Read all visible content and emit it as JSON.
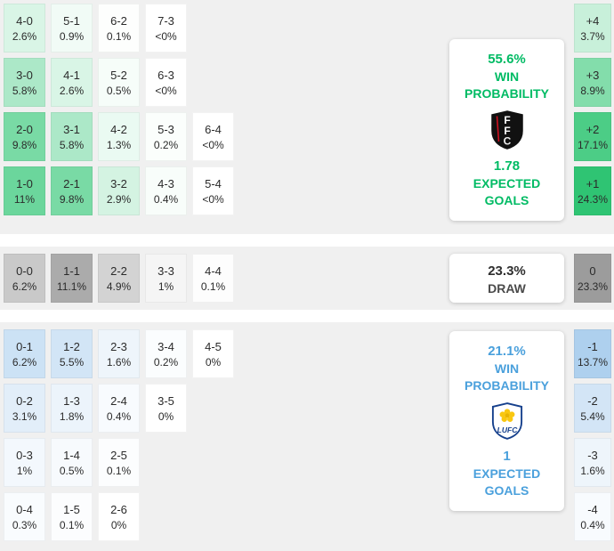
{
  "colors": {
    "home_accent": "#00bb64",
    "away_accent": "#4aa0dc",
    "draw_accent": "#2f2f2f",
    "section_bg": "#f0f0f0",
    "home_max_cell": "#2fc473",
    "away_max_cell": "#aed0ee",
    "draw_max_cell": "#9c9c9c"
  },
  "home": {
    "card": {
      "probability": "55.6%",
      "label_line1": "WIN",
      "label_line2": "PROBABILITY",
      "expected_goals": "1.78",
      "eg_line1": "EXPECTED",
      "eg_line2": "GOALS",
      "team_icon": "fulham-crest"
    },
    "rows": [
      [
        {
          "score": "4-0",
          "pct": "2.6%",
          "bg": "#d9f5e6"
        },
        {
          "score": "5-1",
          "pct": "0.9%",
          "bg": "#f1fbf6"
        },
        {
          "score": "6-2",
          "pct": "0.1%",
          "bg": "#fdfefd"
        },
        {
          "score": "7-3",
          "pct": "<0%",
          "bg": "#ffffff"
        }
      ],
      [
        {
          "score": "3-0",
          "pct": "5.8%",
          "bg": "#ace8c8"
        },
        {
          "score": "4-1",
          "pct": "2.6%",
          "bg": "#d9f5e6"
        },
        {
          "score": "5-2",
          "pct": "0.5%",
          "bg": "#f6fdf9"
        },
        {
          "score": "6-3",
          "pct": "<0%",
          "bg": "#ffffff"
        }
      ],
      [
        {
          "score": "2-0",
          "pct": "9.8%",
          "bg": "#79daa5"
        },
        {
          "score": "3-1",
          "pct": "5.8%",
          "bg": "#ace8c8"
        },
        {
          "score": "4-2",
          "pct": "1.3%",
          "bg": "#eafaf2"
        },
        {
          "score": "5-3",
          "pct": "0.2%",
          "bg": "#fbfefc"
        },
        {
          "score": "6-4",
          "pct": "<0%",
          "bg": "#ffffff"
        }
      ],
      [
        {
          "score": "1-0",
          "pct": "11%",
          "bg": "#6bd69c"
        },
        {
          "score": "2-1",
          "pct": "9.8%",
          "bg": "#79daa5"
        },
        {
          "score": "3-2",
          "pct": "2.9%",
          "bg": "#d4f3e2"
        },
        {
          "score": "4-3",
          "pct": "0.4%",
          "bg": "#f8fdfa"
        },
        {
          "score": "5-4",
          "pct": "<0%",
          "bg": "#ffffff"
        }
      ]
    ],
    "margin_cells": [
      {
        "score": "+4",
        "pct": "3.7%",
        "bg": "#c8f0da"
      },
      {
        "score": "+3",
        "pct": "8.9%",
        "bg": "#83ddab"
      },
      {
        "score": "+2",
        "pct": "17.1%",
        "bg": "#4ccd86"
      },
      {
        "score": "+1",
        "pct": "24.3%",
        "bg": "#2fc473"
      }
    ]
  },
  "draw": {
    "card": {
      "probability": "23.3%",
      "label": "DRAW"
    },
    "rows": [
      [
        {
          "score": "0-0",
          "pct": "6.2%",
          "bg": "#c9c9c9"
        },
        {
          "score": "1-1",
          "pct": "11.1%",
          "bg": "#ababab"
        },
        {
          "score": "2-2",
          "pct": "4.9%",
          "bg": "#d3d3d3"
        },
        {
          "score": "3-3",
          "pct": "1%",
          "bg": "#f5f5f5"
        },
        {
          "score": "4-4",
          "pct": "0.1%",
          "bg": "#fdfdfd"
        }
      ]
    ],
    "margin_cells": [
      {
        "score": "0",
        "pct": "23.3%",
        "bg": "#9c9c9c"
      }
    ]
  },
  "away": {
    "card": {
      "probability": "21.1%",
      "label_line1": "WIN",
      "label_line2": "PROBABILITY",
      "expected_goals": "1",
      "eg_line1": "EXPECTED",
      "eg_line2": "GOALS",
      "team_icon": "leeds-crest"
    },
    "rows": [
      [
        {
          "score": "0-1",
          "pct": "6.2%",
          "bg": "#cce2f5"
        },
        {
          "score": "1-2",
          "pct": "5.5%",
          "bg": "#d2e5f6"
        },
        {
          "score": "2-3",
          "pct": "1.6%",
          "bg": "#eef5fb"
        },
        {
          "score": "3-4",
          "pct": "0.2%",
          "bg": "#fbfdfe"
        },
        {
          "score": "4-5",
          "pct": "0%",
          "bg": "#ffffff"
        }
      ],
      [
        {
          "score": "0-2",
          "pct": "3.1%",
          "bg": "#e2eef9"
        },
        {
          "score": "1-3",
          "pct": "1.8%",
          "bg": "#ecf4fb"
        },
        {
          "score": "2-4",
          "pct": "0.4%",
          "bg": "#f8fbfe"
        },
        {
          "score": "3-5",
          "pct": "0%",
          "bg": "#ffffff"
        }
      ],
      [
        {
          "score": "0-3",
          "pct": "1%",
          "bg": "#f3f8fd"
        },
        {
          "score": "1-4",
          "pct": "0.5%",
          "bg": "#f7fafd"
        },
        {
          "score": "2-5",
          "pct": "0.1%",
          "bg": "#fcfdfe"
        }
      ],
      [
        {
          "score": "0-4",
          "pct": "0.3%",
          "bg": "#f9fcfe"
        },
        {
          "score": "1-5",
          "pct": "0.1%",
          "bg": "#fcfdfe"
        },
        {
          "score": "2-6",
          "pct": "0%",
          "bg": "#ffffff"
        }
      ]
    ],
    "margin_cells": [
      {
        "score": "-1",
        "pct": "13.7%",
        "bg": "#aed0ee"
      },
      {
        "score": "-2",
        "pct": "5.4%",
        "bg": "#d3e5f6"
      },
      {
        "score": "-3",
        "pct": "1.6%",
        "bg": "#eef5fb"
      },
      {
        "score": "-4",
        "pct": "0.4%",
        "bg": "#f8fbfe"
      }
    ]
  },
  "chart_data": {
    "type": "heatmap",
    "title": "Correct-score probability matrix with win/draw probabilities and expected goals",
    "legend_position": "right-cards",
    "groups": [
      {
        "outcome": "home-win",
        "color": "green",
        "team_icon": "fulham-crest",
        "win_probability": "55.6%",
        "expected_goals": "1.78",
        "scores": {
          "4-0": "2.6%",
          "5-1": "0.9%",
          "6-2": "0.1%",
          "7-3": "<0%",
          "3-0": "5.8%",
          "4-1": "2.6%",
          "5-2": "0.5%",
          "6-3": "<0%",
          "2-0": "9.8%",
          "3-1": "5.8%",
          "4-2": "1.3%",
          "5-3": "0.2%",
          "6-4": "<0%",
          "1-0": "11%",
          "2-1": "9.8%",
          "3-2": "2.9%",
          "4-3": "0.4%",
          "5-4": "<0%"
        },
        "goal_difference": {
          "+4": "3.7%",
          "+3": "8.9%",
          "+2": "17.1%",
          "+1": "24.3%"
        }
      },
      {
        "outcome": "draw",
        "color": "gray",
        "probability": "23.3%",
        "scores": {
          "0-0": "6.2%",
          "1-1": "11.1%",
          "2-2": "4.9%",
          "3-3": "1%",
          "4-4": "0.1%"
        },
        "goal_difference": {
          "0": "23.3%"
        }
      },
      {
        "outcome": "away-win",
        "color": "blue",
        "team_icon": "leeds-crest",
        "win_probability": "21.1%",
        "expected_goals": "1",
        "scores": {
          "0-1": "6.2%",
          "1-2": "5.5%",
          "2-3": "1.6%",
          "3-4": "0.2%",
          "4-5": "0%",
          "0-2": "3.1%",
          "1-3": "1.8%",
          "2-4": "0.4%",
          "3-5": "0%",
          "0-3": "1%",
          "1-4": "0.5%",
          "2-5": "0.1%",
          "0-4": "0.3%",
          "1-5": "0.1%",
          "2-6": "0%"
        },
        "goal_difference": {
          "-1": "13.7%",
          "-2": "5.4%",
          "-3": "1.6%",
          "-4": "0.4%"
        }
      }
    ]
  }
}
